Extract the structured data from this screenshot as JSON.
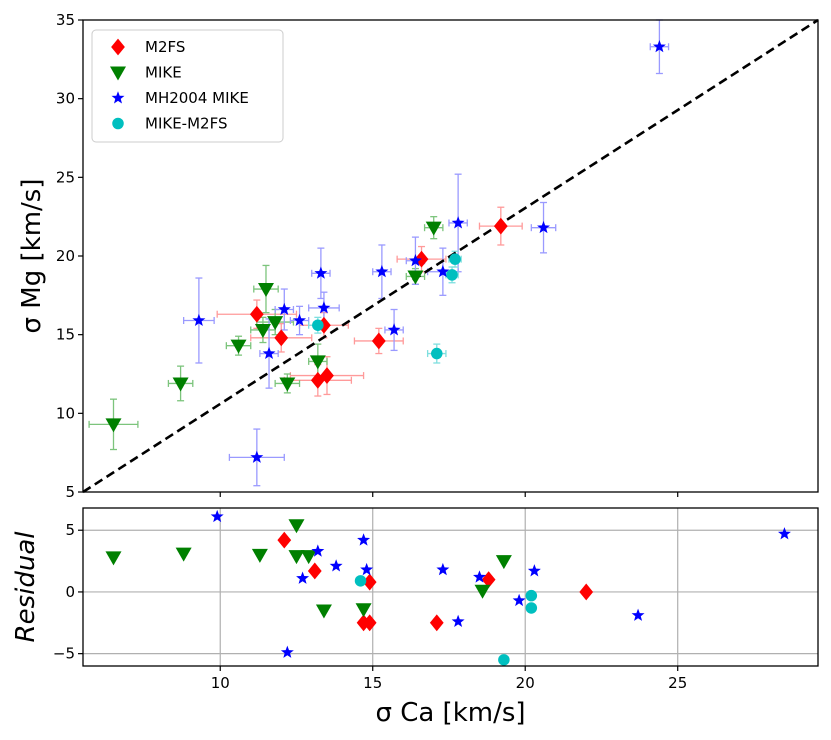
{
  "chart_data": [
    {
      "type": "scatter",
      "panel": "main",
      "xlabel": "",
      "ylabel": "σ Mg [km/s]",
      "xlim": [
        5.5,
        29.6
      ],
      "ylim": [
        5,
        35
      ],
      "yticks": [
        5,
        10,
        15,
        20,
        25,
        30,
        35
      ],
      "xticks": [
        10,
        15,
        20,
        25
      ],
      "grid": false,
      "legend": "top-left",
      "reference_line": {
        "style": "dashed",
        "color": "#000000",
        "from": [
          5.5,
          5
        ],
        "to": [
          29.6,
          35
        ]
      },
      "series": [
        {
          "name": "M2FS",
          "marker": "diamond",
          "color": "#ff0000",
          "error_color": "#ff9a9a",
          "points": [
            {
              "x": 11.2,
              "y": 16.3,
              "xerr": 1.3,
              "yerr": 0.9
            },
            {
              "x": 12.0,
              "y": 14.8,
              "xerr": 1.0,
              "yerr": 0.9
            },
            {
              "x": 13.2,
              "y": 12.1,
              "xerr": 1.1,
              "yerr": 1.0
            },
            {
              "x": 13.5,
              "y": 12.4,
              "xerr": 1.2,
              "yerr": 1.2
            },
            {
              "x": 13.4,
              "y": 15.6,
              "xerr": 0.8,
              "yerr": 0.8
            },
            {
              "x": 15.2,
              "y": 14.6,
              "xerr": 0.8,
              "yerr": 0.8
            },
            {
              "x": 16.6,
              "y": 19.8,
              "xerr": 0.8,
              "yerr": 0.8
            },
            {
              "x": 19.2,
              "y": 21.9,
              "xerr": 0.7,
              "yerr": 1.2
            }
          ]
        },
        {
          "name": "MIKE",
          "marker": "triangle-down",
          "color": "#008000",
          "error_color": "#7cc47c",
          "points": [
            {
              "x": 6.5,
              "y": 9.3,
              "xerr": 0.8,
              "yerr": 1.6
            },
            {
              "x": 8.7,
              "y": 11.9,
              "xerr": 0.4,
              "yerr": 1.1
            },
            {
              "x": 10.6,
              "y": 14.3,
              "xerr": 0.4,
              "yerr": 0.6
            },
            {
              "x": 11.4,
              "y": 15.3,
              "xerr": 0.4,
              "yerr": 0.8
            },
            {
              "x": 11.5,
              "y": 17.9,
              "xerr": 0.4,
              "yerr": 1.5
            },
            {
              "x": 11.8,
              "y": 15.8,
              "xerr": 0.6,
              "yerr": 0.8
            },
            {
              "x": 12.2,
              "y": 11.9,
              "xerr": 0.4,
              "yerr": 0.6
            },
            {
              "x": 13.2,
              "y": 13.3,
              "xerr": 0.3,
              "yerr": 1.1
            },
            {
              "x": 16.4,
              "y": 18.7,
              "xerr": 0.3,
              "yerr": 0.5
            },
            {
              "x": 17.0,
              "y": 21.8,
              "xerr": 0.3,
              "yerr": 0.7
            }
          ]
        },
        {
          "name": "MH2004 MIKE",
          "marker": "star",
          "color": "#0000ff",
          "error_color": "#9a9aff",
          "points": [
            {
              "x": 9.3,
              "y": 15.9,
              "xerr": 0.5,
              "yerr": 2.7
            },
            {
              "x": 11.2,
              "y": 7.2,
              "xerr": 0.9,
              "yerr": 1.8
            },
            {
              "x": 11.6,
              "y": 13.8,
              "xerr": 0.3,
              "yerr": 2.2
            },
            {
              "x": 12.1,
              "y": 16.6,
              "xerr": 0.3,
              "yerr": 1.3
            },
            {
              "x": 12.6,
              "y": 15.9,
              "xerr": 0.3,
              "yerr": 0.9
            },
            {
              "x": 13.3,
              "y": 18.9,
              "xerr": 0.3,
              "yerr": 1.6
            },
            {
              "x": 13.4,
              "y": 16.7,
              "xerr": 0.5,
              "yerr": 1.0
            },
            {
              "x": 15.3,
              "y": 19.0,
              "xerr": 0.3,
              "yerr": 1.7
            },
            {
              "x": 15.7,
              "y": 15.3,
              "xerr": 0.3,
              "yerr": 1.3
            },
            {
              "x": 16.4,
              "y": 19.7,
              "xerr": 0.3,
              "yerr": 1.5
            },
            {
              "x": 17.3,
              "y": 19.0,
              "xerr": 0.5,
              "yerr": 1.5
            },
            {
              "x": 17.8,
              "y": 22.1,
              "xerr": 0.3,
              "yerr": 3.1
            },
            {
              "x": 20.6,
              "y": 21.8,
              "xerr": 0.4,
              "yerr": 1.6
            },
            {
              "x": 24.4,
              "y": 33.3,
              "xerr": 0.3,
              "yerr": 1.7
            }
          ]
        },
        {
          "name": "MIKE-M2FS",
          "marker": "circle",
          "color": "#00bfbf",
          "error_color": "#7fdfdf",
          "points": [
            {
              "x": 13.2,
              "y": 15.6,
              "xerr": 0.3,
              "yerr": 0.5
            },
            {
              "x": 17.1,
              "y": 13.8,
              "xerr": 0.3,
              "yerr": 0.6
            },
            {
              "x": 17.6,
              "y": 18.8,
              "xerr": 0.2,
              "yerr": 0.5
            },
            {
              "x": 17.7,
              "y": 19.8,
              "xerr": 0.2,
              "yerr": 0.5
            }
          ]
        }
      ]
    },
    {
      "type": "scatter",
      "panel": "residual",
      "xlabel": "σ Ca [km/s]",
      "ylabel": "Residual",
      "xlim": [
        5.5,
        29.6
      ],
      "ylim": [
        -6,
        6.8
      ],
      "xticks": [
        10,
        15,
        20,
        25
      ],
      "yticks": [
        -5,
        0,
        5
      ],
      "grid": true,
      "series": [
        {
          "name": "M2FS",
          "marker": "diamond",
          "color": "#ff0000",
          "points": [
            {
              "x": 12.1,
              "y": 4.2
            },
            {
              "x": 13.1,
              "y": 1.7
            },
            {
              "x": 14.7,
              "y": -2.5
            },
            {
              "x": 14.9,
              "y": 0.8
            },
            {
              "x": 14.9,
              "y": -2.5
            },
            {
              "x": 17.1,
              "y": -2.5
            },
            {
              "x": 18.8,
              "y": 1.0
            },
            {
              "x": 22.0,
              "y": 0.0
            }
          ]
        },
        {
          "name": "MIKE",
          "marker": "triangle-down",
          "color": "#008000",
          "points": [
            {
              "x": 6.5,
              "y": 2.8
            },
            {
              "x": 8.8,
              "y": 3.1
            },
            {
              "x": 11.3,
              "y": 3.0
            },
            {
              "x": 12.5,
              "y": 5.4
            },
            {
              "x": 12.5,
              "y": 2.9
            },
            {
              "x": 12.9,
              "y": 2.9
            },
            {
              "x": 13.4,
              "y": -1.5
            },
            {
              "x": 14.7,
              "y": -1.4
            },
            {
              "x": 18.6,
              "y": 0.1
            },
            {
              "x": 19.3,
              "y": 2.5
            }
          ]
        },
        {
          "name": "MH2004 MIKE",
          "marker": "star",
          "color": "#0000ff",
          "points": [
            {
              "x": 9.9,
              "y": 6.1
            },
            {
              "x": 12.2,
              "y": -4.9
            },
            {
              "x": 12.7,
              "y": 1.1
            },
            {
              "x": 13.2,
              "y": 3.3
            },
            {
              "x": 13.8,
              "y": 2.1
            },
            {
              "x": 14.7,
              "y": 4.2
            },
            {
              "x": 14.8,
              "y": 1.8
            },
            {
              "x": 17.3,
              "y": 1.8
            },
            {
              "x": 17.8,
              "y": -2.4
            },
            {
              "x": 18.5,
              "y": 1.2
            },
            {
              "x": 19.8,
              "y": -0.7
            },
            {
              "x": 20.3,
              "y": 1.7
            },
            {
              "x": 23.7,
              "y": -1.9
            },
            {
              "x": 28.5,
              "y": 4.7
            }
          ]
        },
        {
          "name": "MIKE-M2FS",
          "marker": "circle",
          "color": "#00bfbf",
          "points": [
            {
              "x": 14.6,
              "y": 0.9
            },
            {
              "x": 19.3,
              "y": -5.5
            },
            {
              "x": 20.2,
              "y": -0.3
            },
            {
              "x": 20.2,
              "y": -1.3
            }
          ]
        }
      ]
    }
  ]
}
